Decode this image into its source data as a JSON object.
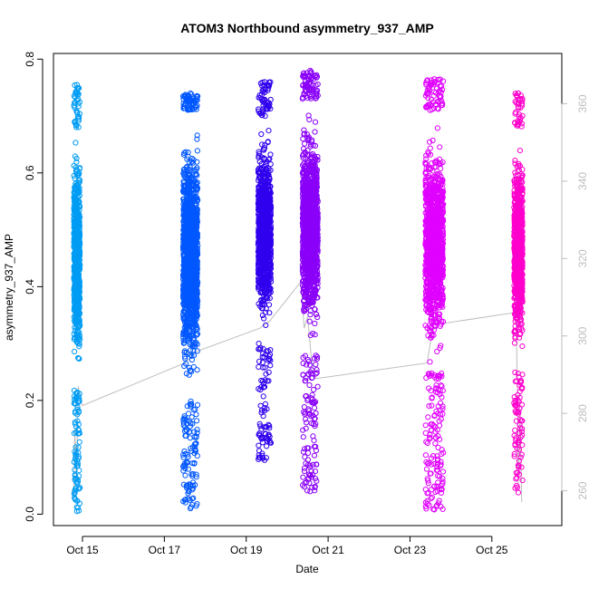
{
  "chart_data": {
    "type": "scatter",
    "title": "ATOM3 Northbound asymmetry_937_AMP",
    "xlabel": "Date",
    "ylabel": "asymmetry_937_AMP",
    "x_is_date": true,
    "xlim": [
      "2023-10-14T07:00",
      "2023-10-26T17:00"
    ],
    "ylim": [
      -0.02,
      0.81
    ],
    "yticks": [
      0.0,
      0.2,
      0.4,
      0.6,
      0.8
    ],
    "ytick_labels": [
      "0.0",
      "0.2",
      "0.4",
      "0.6",
      "0.8"
    ],
    "xtick_labels": [
      "Oct 15",
      "Oct 17",
      "Oct 19",
      "Oct 21",
      "Oct 23",
      "Oct 25"
    ],
    "xticks": [
      "2023-10-15T00:00",
      "2023-10-17T00:00",
      "2023-10-19T00:00",
      "2023-10-21T00:00",
      "2023-10-23T00:00",
      "2023-10-25T00:00"
    ],
    "y2lim": [
      251,
      373
    ],
    "y2ticks": [
      260,
      280,
      300,
      320,
      340,
      360
    ],
    "y2tick_labels": [
      "260",
      "280",
      "300",
      "320",
      "340",
      "360"
    ],
    "y2_color": "#bdbdbd",
    "grid": false,
    "legend": "none",
    "marker": "open-circle",
    "series": [
      {
        "x_start": "2023-10-14T19:00",
        "x_end": "2023-10-14T22:30",
        "color": "#009cf4",
        "y_core": [
          0.22,
          0.68
        ],
        "y_min": 0.005,
        "y_max": 0.755,
        "density": 900
      },
      {
        "x_start": "2023-10-17T11:00",
        "x_end": "2023-10-17T19:30",
        "color": "#0057ff",
        "y_core": [
          0.2,
          0.71
        ],
        "y_min": 0.01,
        "y_max": 0.74,
        "density": 1400
      },
      {
        "x_start": "2023-10-19T07:00",
        "x_end": "2023-10-19T14:30",
        "color": "#2f00ee",
        "y_core": [
          0.3,
          0.7
        ],
        "y_min": 0.095,
        "y_max": 0.76,
        "density": 1100
      },
      {
        "x_start": "2023-10-20T09:00",
        "x_end": "2023-10-20T18:00",
        "color": "#8a00f8",
        "y_core": [
          0.28,
          0.73
        ],
        "y_min": 0.04,
        "y_max": 0.78,
        "density": 1300
      },
      {
        "x_start": "2023-10-23T09:00",
        "x_end": "2023-10-23T19:30",
        "color": "#e000ff",
        "y_core": [
          0.25,
          0.71
        ],
        "y_min": 0.008,
        "y_max": 0.765,
        "density": 1300
      },
      {
        "x_start": "2023-10-25T13:00",
        "x_end": "2023-10-25T18:00",
        "color": "#ff00cc",
        "y_core": [
          0.25,
          0.68
        ],
        "y_min": 0.038,
        "y_max": 0.74,
        "density": 900
      }
    ],
    "secondary_line": {
      "color": "#bdbdbd",
      "axis": "y2",
      "points": [
        [
          "2023-10-14T19:00",
          259
        ],
        [
          "2023-10-14T19:30",
          276
        ],
        [
          "2023-10-14T20:30",
          263
        ],
        [
          "2023-10-14T21:30",
          287
        ],
        [
          "2023-10-14T22:30",
          284
        ],
        [
          "2023-10-15T00:00",
          282
        ],
        [
          "2023-10-17T12:00",
          293
        ],
        [
          "2023-10-17T19:00",
          296
        ],
        [
          "2023-10-19T08:00",
          302
        ],
        [
          "2023-10-19T14:00",
          304
        ],
        [
          "2023-10-20T08:00",
          314
        ],
        [
          "2023-10-20T10:00",
          302
        ],
        [
          "2023-10-20T12:00",
          305
        ],
        [
          "2023-10-20T14:00",
          295
        ],
        [
          "2023-10-20T16:00",
          290
        ],
        [
          "2023-10-20T17:00",
          289
        ],
        [
          "2023-10-23T10:00",
          293
        ],
        [
          "2023-10-23T13:00",
          301
        ],
        [
          "2023-10-23T16:00",
          303
        ],
        [
          "2023-10-25T13:00",
          306
        ],
        [
          "2023-10-25T14:00",
          309
        ],
        [
          "2023-10-25T15:00",
          285
        ],
        [
          "2023-10-25T15:30",
          262
        ],
        [
          "2023-10-25T16:30",
          280
        ],
        [
          "2023-10-25T17:30",
          257
        ]
      ]
    }
  }
}
